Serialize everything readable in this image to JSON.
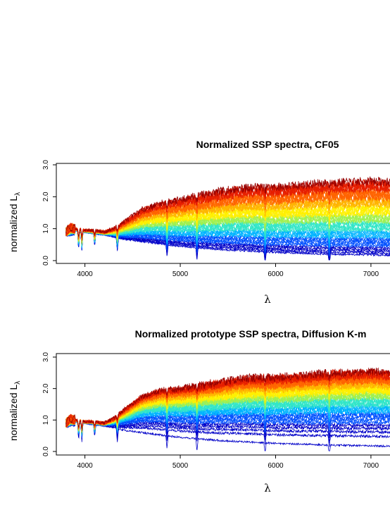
{
  "chart_data": [
    {
      "type": "line",
      "title": "Normalized SSP spectra, CF05",
      "xlabel": "λ",
      "ylabel": "normalized L",
      "ylabel_subscript": "λ",
      "xticks": [
        "4000",
        "5000",
        "6000",
        "7000"
      ],
      "yticks": [
        "0.0",
        "1.0",
        "2.0",
        "3.0"
      ],
      "xlim": [
        3700,
        7200
      ],
      "ylim": [
        0,
        3.0
      ],
      "n_spectra": 42,
      "colormap": [
        "#0000c8",
        "#0050ff",
        "#00b4ff",
        "#32e6c8",
        "#a0f050",
        "#fff000",
        "#ffb400",
        "#ff6400",
        "#e61e00",
        "#960000"
      ],
      "envelope_x": [
        3800,
        3850,
        3900,
        4000,
        4100,
        4200,
        4300,
        4400,
        4600,
        4800,
        5000,
        5200,
        5400,
        5600,
        5800,
        6000,
        6200,
        6400,
        6600,
        6800,
        7000,
        7200
      ],
      "envelope_upper": [
        0.9,
        1.05,
        1.0,
        0.95,
        0.95,
        0.9,
        1.0,
        1.2,
        1.6,
        1.8,
        1.9,
        2.05,
        2.15,
        2.25,
        2.3,
        2.3,
        2.35,
        2.4,
        2.45,
        2.45,
        2.5,
        2.45
      ],
      "envelope_lower": [
        0.9,
        0.9,
        0.95,
        0.9,
        0.85,
        0.82,
        0.75,
        0.68,
        0.6,
        0.52,
        0.45,
        0.4,
        0.35,
        0.32,
        0.29,
        0.26,
        0.24,
        0.22,
        0.2,
        0.19,
        0.18,
        0.17
      ]
    },
    {
      "type": "line",
      "title": "Normalized prototype SSP spectra, Diffusion K-m",
      "xlabel": "λ",
      "ylabel": "normalized L",
      "ylabel_subscript": "λ",
      "xticks": [
        "4000",
        "5000",
        "6000",
        "7000"
      ],
      "yticks": [
        "0.0",
        "1.0",
        "2.0",
        "3.0"
      ],
      "xlim": [
        3700,
        7200
      ],
      "ylim": [
        0,
        3.0
      ],
      "n_spectra": 42,
      "colormap": [
        "#0000c8",
        "#0050ff",
        "#00b4ff",
        "#32e6c8",
        "#a0f050",
        "#fff000",
        "#ffb400",
        "#ff6400",
        "#e61e00",
        "#960000"
      ],
      "envelope_x": [
        3800,
        3850,
        3900,
        4000,
        4100,
        4200,
        4300,
        4400,
        4600,
        4800,
        5000,
        5200,
        5400,
        5600,
        5800,
        6000,
        6200,
        6400,
        6600,
        6800,
        7000,
        7200
      ],
      "envelope_upper": [
        0.9,
        1.05,
        1.0,
        0.95,
        0.95,
        0.9,
        1.05,
        1.3,
        1.75,
        1.95,
        2.0,
        2.1,
        2.2,
        2.3,
        2.35,
        2.35,
        2.4,
        2.45,
        2.5,
        2.5,
        2.55,
        2.5
      ],
      "envelope_lower": [
        0.9,
        0.9,
        0.95,
        0.9,
        0.85,
        0.82,
        0.75,
        0.68,
        0.6,
        0.52,
        0.45,
        0.4,
        0.35,
        0.32,
        0.29,
        0.26,
        0.24,
        0.22,
        0.2,
        0.19,
        0.18,
        0.17
      ]
    }
  ]
}
